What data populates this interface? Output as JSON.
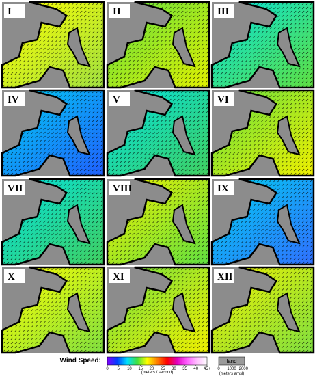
{
  "panels": [
    {
      "label": "I"
    },
    {
      "label": "II"
    },
    {
      "label": "III"
    },
    {
      "label": "IV"
    },
    {
      "label": "V"
    },
    {
      "label": "VI"
    },
    {
      "label": "VII"
    },
    {
      "label": "VIII"
    },
    {
      "label": "IX"
    },
    {
      "label": "X"
    },
    {
      "label": "XI"
    },
    {
      "label": "XII"
    }
  ],
  "legend": {
    "title": "Wind Speed:",
    "lim": [
      0,
      45
    ],
    "ticks": [
      0,
      5,
      10,
      15,
      20,
      25,
      30,
      35,
      40,
      {
        "value": 45,
        "label": "45+"
      }
    ],
    "units": "(meters / second)",
    "land_label": "land",
    "land_ticks": [
      0,
      1000,
      {
        "value": 2000,
        "label": "2000+"
      }
    ],
    "land_units": "(meters amsl)"
  }
}
